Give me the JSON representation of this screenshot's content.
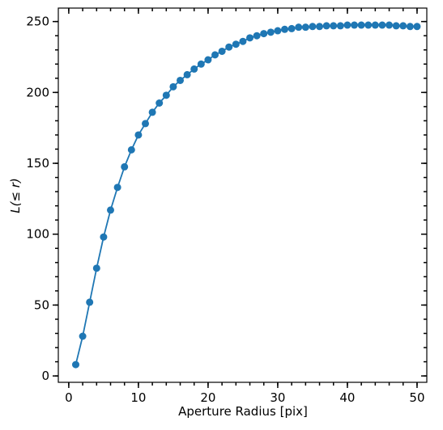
{
  "chart_data": {
    "type": "line",
    "xlabel": "Aperture Radius [pix]",
    "ylabel": "L(≤ r)",
    "x": [
      1,
      2,
      3,
      4,
      5,
      6,
      7,
      8,
      9,
      10,
      11,
      12,
      13,
      14,
      15,
      16,
      17,
      18,
      19,
      20,
      21,
      22,
      23,
      24,
      25,
      26,
      27,
      28,
      29,
      30,
      31,
      32,
      33,
      34,
      35,
      36,
      37,
      38,
      39,
      40,
      41,
      42,
      43,
      44,
      45,
      46,
      47,
      48,
      49,
      50
    ],
    "series": [
      {
        "color": "#1f77b4",
        "values": [
          8,
          28,
          52,
          76,
          98,
          117,
          133,
          147.5,
          159.5,
          170,
          178,
          186,
          192.5,
          198,
          204,
          208.5,
          212.5,
          216.5,
          220,
          223,
          226.5,
          229,
          232,
          234,
          236,
          238.5,
          240,
          241.5,
          242.5,
          243.5,
          244.5,
          245,
          246,
          246,
          246.5,
          246.5,
          247,
          247,
          247,
          247.5,
          247.5,
          247.5,
          247.5,
          247.5,
          247.5,
          247.5,
          247,
          247,
          246.5,
          246.5
        ]
      }
    ],
    "xlim": [
      -1.5,
      51.4
    ],
    "ylim": [
      -4.5,
      259.5
    ],
    "xticks": [
      0,
      10,
      20,
      30,
      40,
      50
    ],
    "yticks": [
      0,
      50,
      100,
      150,
      200,
      250
    ]
  }
}
